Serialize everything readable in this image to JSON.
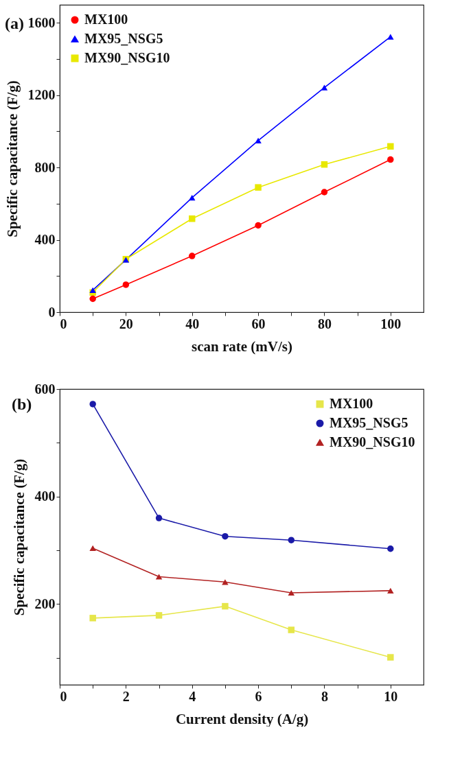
{
  "chart_data": [
    {
      "type": "line",
      "title": "(a)",
      "xlabel": "scan rate (mV/s)",
      "ylabel": "Specific capacitance (F/g)",
      "xlim": [
        0,
        110
      ],
      "ylim": [
        0,
        1700
      ],
      "xticks": [
        0,
        {
          "value": 10,
          "label": null
        },
        20,
        {
          "value": 30,
          "label": null
        },
        40,
        {
          "value": 50,
          "label": null
        },
        60,
        {
          "value": 70,
          "label": null
        },
        80,
        {
          "value": 90,
          "label": null
        },
        100
      ],
      "yticks": [
        0,
        {
          "value": 200,
          "label": null
        },
        400,
        {
          "value": 600,
          "label": null
        },
        800,
        {
          "value": 1000,
          "label": null
        },
        1200,
        {
          "value": 1400,
          "label": null
        },
        1600
      ],
      "legend": "top left",
      "grid": false,
      "x": [
        10,
        20,
        40,
        60,
        80,
        100
      ],
      "series": [
        {
          "name": "MX100",
          "color": "#ff0000",
          "marker": "circle",
          "values": [
            74,
            152,
            311,
            480,
            664,
            844
          ]
        },
        {
          "name": "MX95_NSG5",
          "color": "#0000ff",
          "marker": "triangle",
          "values": [
            122,
            290,
            633,
            949,
            1242,
            1523
          ]
        },
        {
          "name": "MX90_NSG10",
          "color": "#e8e800",
          "marker": "square",
          "values": [
            109,
            293,
            517,
            690,
            817,
            917
          ]
        }
      ]
    },
    {
      "type": "line",
      "title": "(b)",
      "xlabel": "Current density (A/g)",
      "ylabel": "Specific capacitance (F/g)",
      "xlim": [
        0,
        11
      ],
      "ylim": [
        50,
        600
      ],
      "xticks": [
        0,
        {
          "value": 1,
          "label": null
        },
        2,
        {
          "value": 3,
          "label": null
        },
        4,
        {
          "value": 5,
          "label": null
        },
        6,
        {
          "value": 7,
          "label": null
        },
        8,
        {
          "value": 9,
          "label": null
        },
        10
      ],
      "yticks": [
        {
          "value": 100,
          "label": null
        },
        200,
        {
          "value": 300,
          "label": null
        },
        400,
        {
          "value": 500,
          "label": null
        },
        600
      ],
      "legend": "top right",
      "grid": false,
      "x": [
        1,
        3,
        5,
        7,
        10
      ],
      "series": [
        {
          "name": "MX100",
          "color": "#e6e64a",
          "marker": "square",
          "values": [
            174,
            179,
            196,
            152,
            101
          ]
        },
        {
          "name": "MX95_NSG5",
          "color": "#1a1aa8",
          "marker": "circle",
          "values": [
            572,
            360,
            326,
            319,
            303
          ]
        },
        {
          "name": "MX90_NSG10",
          "color": "#b22222",
          "marker": "triangle",
          "values": [
            304,
            251,
            241,
            221,
            225
          ]
        }
      ]
    }
  ]
}
